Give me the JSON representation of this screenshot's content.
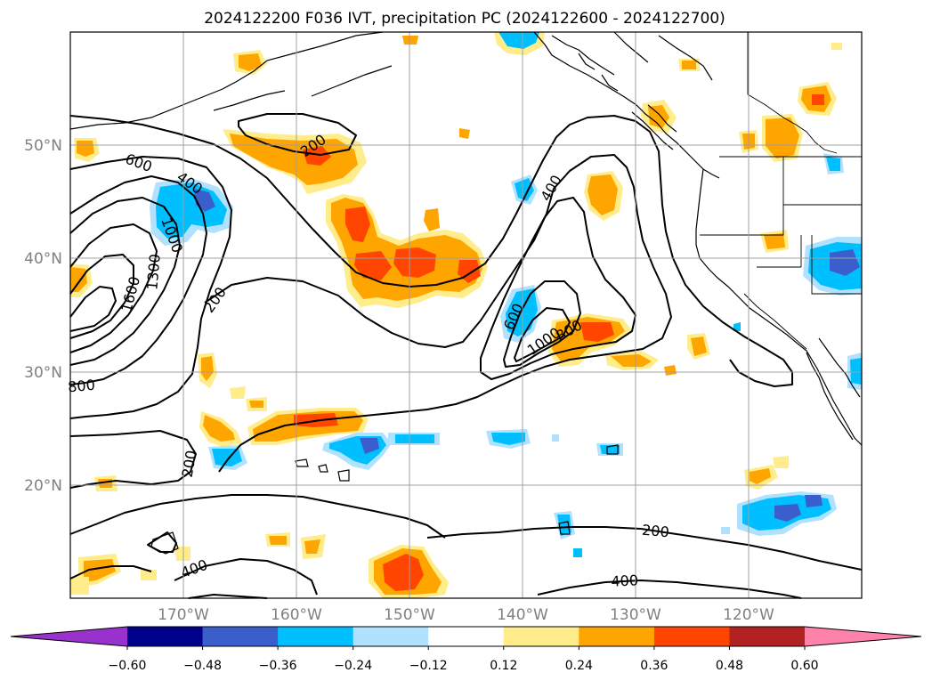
{
  "title": "2024122200 F036 IVT, precipitation PC (2024122600 - 2024122700)",
  "lat_labels": [
    "50°N",
    "40°N",
    "30°N",
    "20°N"
  ],
  "lon_labels": [
    "170°W",
    "160°W",
    "150°W",
    "140°W",
    "130°W",
    "120°W"
  ],
  "contour_labels": [
    "200",
    "600",
    "400",
    "1000",
    "1300",
    "1600",
    "200",
    "800",
    "200",
    "400",
    "400",
    "600",
    "1000",
    "800",
    "200",
    "400"
  ],
  "colorbar": {
    "tick_labels": [
      "−0.60",
      "−0.48",
      "−0.36",
      "−0.24",
      "−0.12",
      "0.12",
      "0.24",
      "0.36",
      "0.48",
      "0.60"
    ],
    "colors": [
      "#9932cc",
      "#00008b",
      "#3a5fcd",
      "#00bfff",
      "#b0e2ff",
      "#ffffff",
      "#ffec8b",
      "#ffa500",
      "#ff4500",
      "#b22222",
      "#ff82ab"
    ]
  },
  "fill_colors": {
    "light_yellow": "#ffec8b",
    "orange": "#ffa500",
    "red_orange": "#ff4500",
    "light_blue": "#b0e2ff",
    "blue": "#00bfff",
    "dark_blue": "#3a5fcd"
  }
}
